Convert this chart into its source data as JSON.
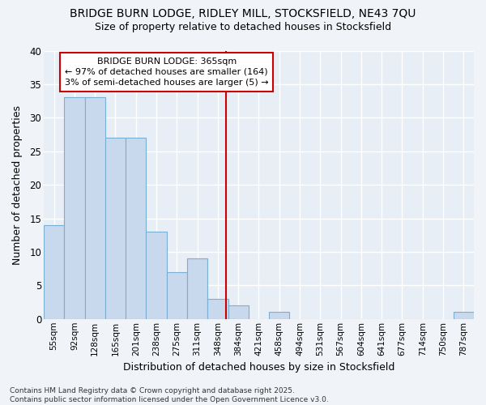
{
  "title_line1": "BRIDGE BURN LODGE, RIDLEY MILL, STOCKSFIELD, NE43 7QU",
  "title_line2": "Size of property relative to detached houses in Stocksfield",
  "xlabel": "Distribution of detached houses by size in Stocksfield",
  "ylabel": "Number of detached properties",
  "categories": [
    "55sqm",
    "92sqm",
    "128sqm",
    "165sqm",
    "201sqm",
    "238sqm",
    "275sqm",
    "311sqm",
    "348sqm",
    "384sqm",
    "421sqm",
    "458sqm",
    "494sqm",
    "531sqm",
    "567sqm",
    "604sqm",
    "641sqm",
    "677sqm",
    "714sqm",
    "750sqm",
    "787sqm"
  ],
  "values": [
    14,
    33,
    33,
    27,
    27,
    13,
    7,
    9,
    3,
    2,
    0,
    1,
    0,
    0,
    0,
    0,
    0,
    0,
    0,
    0,
    1
  ],
  "bar_color": "#c8d9ee",
  "bar_edge_color": "#7aafd4",
  "background_color": "#f0f4f8",
  "plot_bg_color": "#e8eef5",
  "grid_color": "#ffffff",
  "annotation_box_color": "#ffffff",
  "annotation_border_color": "#cc0000",
  "vline_color": "#cc0000",
  "vline_x": 8.4,
  "annotation_text_line1": "BRIDGE BURN LODGE: 365sqm",
  "annotation_text_line2": "← 97% of detached houses are smaller (164)",
  "annotation_text_line3": "3% of semi-detached houses are larger (5) →",
  "footer_line1": "Contains HM Land Registry data © Crown copyright and database right 2025.",
  "footer_line2": "Contains public sector information licensed under the Open Government Licence v3.0.",
  "ylim": [
    0,
    40
  ],
  "yticks": [
    0,
    5,
    10,
    15,
    20,
    25,
    30,
    35,
    40
  ]
}
